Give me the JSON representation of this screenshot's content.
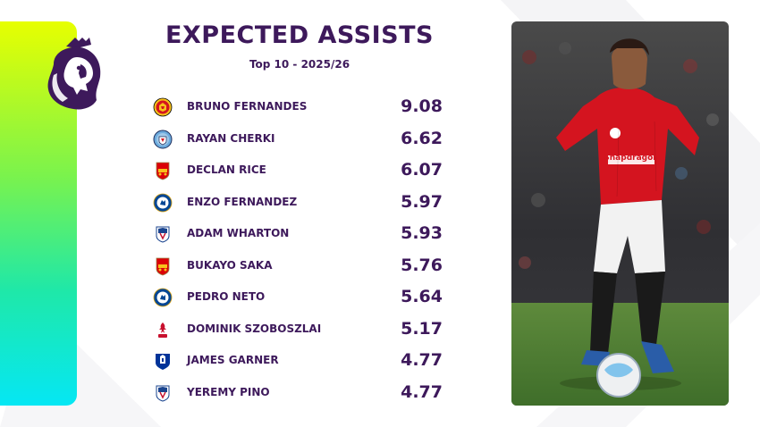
{
  "header": {
    "title": "EXPECTED ASSISTS",
    "subtitle": "Top 10 - 2025/26"
  },
  "rows": [
    {
      "player": "BRUNO FERNANDES",
      "value": "9.08",
      "crest": "man-utd-crest"
    },
    {
      "player": "RAYAN CHERKI",
      "value": "6.62",
      "crest": "man-city-crest"
    },
    {
      "player": "DECLAN RICE",
      "value": "6.07",
      "crest": "arsenal-crest"
    },
    {
      "player": "ENZO FERNANDEZ",
      "value": "5.97",
      "crest": "chelsea-crest"
    },
    {
      "player": "ADAM WHARTON",
      "value": "5.93",
      "crest": "crystal-palace-crest"
    },
    {
      "player": "BUKAYO SAKA",
      "value": "5.76",
      "crest": "arsenal-crest"
    },
    {
      "player": "PEDRO NETO",
      "value": "5.64",
      "crest": "chelsea-crest"
    },
    {
      "player": "DOMINIK SZOBOSZLAI",
      "value": "5.17",
      "crest": "liverpool-crest"
    },
    {
      "player": "JAMES GARNER",
      "value": "4.77",
      "crest": "everton-crest"
    },
    {
      "player": "YEREMY PINO",
      "value": "4.77",
      "crest": "crystal-palace-crest"
    }
  ],
  "photo": {
    "sponsor_text": "Snapdragon"
  },
  "colors": {
    "brand_purple": "#3d195b",
    "accent_gradient": [
      "#e7ff00",
      "#05e7f4"
    ],
    "kit_red": "#d4141f"
  }
}
